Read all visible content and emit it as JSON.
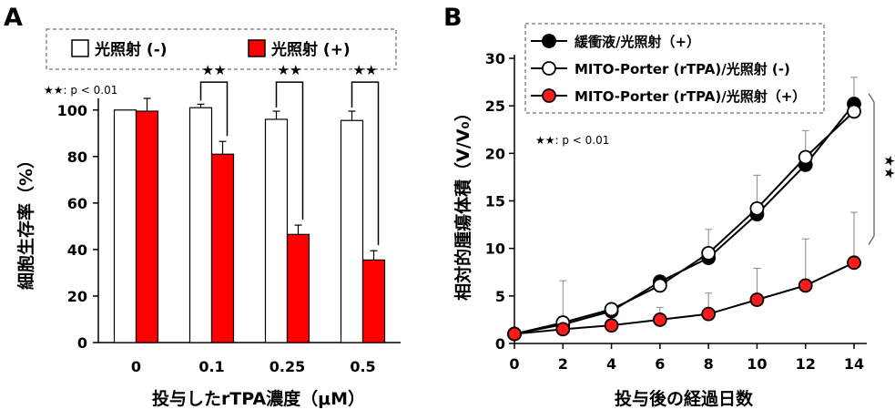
{
  "panels": {
    "a": {
      "label": "A"
    },
    "b": {
      "label": "B"
    }
  },
  "chart_data": [
    {
      "type": "bar",
      "panel": "A",
      "categories": [
        "0",
        "0.1",
        "0.25",
        "0.5"
      ],
      "series": [
        {
          "name": "光照射 (-)",
          "color": "#ffffff",
          "values": [
            100,
            101,
            96,
            95.5
          ],
          "errors": [
            0,
            1.5,
            3.5,
            4
          ]
        },
        {
          "name": "光照射 (+)",
          "color": "#ff0000",
          "values": [
            99.5,
            81,
            46.5,
            35.5
          ],
          "errors": [
            5.5,
            5.5,
            4,
            4
          ]
        }
      ],
      "xlabel": "投与したrTPA濃度（μM）",
      "ylabel": "細胞生存率（%）",
      "ylim": [
        0,
        100
      ],
      "yticks": [
        0,
        20,
        40,
        60,
        80,
        100
      ],
      "significance": {
        "marker": "★★",
        "pairs": [
          1,
          2,
          3
        ],
        "note_marker": "★★",
        "note_text": ": p < 0.01"
      },
      "legend": "top",
      "legend_border": "dashed"
    },
    {
      "type": "line",
      "panel": "B",
      "x": [
        0,
        2,
        4,
        6,
        8,
        10,
        12,
        14
      ],
      "series": [
        {
          "name": "緩衝液/光照射（+）",
          "marker": "filled-black",
          "values": [
            1,
            2.0,
            3.4,
            6.5,
            9.0,
            13.6,
            18.8,
            25.2
          ],
          "errors": [
            0,
            0,
            0,
            0,
            0,
            0,
            0,
            2.8
          ]
        },
        {
          "name": "MITO-Porter (rTPA)/光照射 (-)",
          "marker": "open",
          "values": [
            1,
            2.2,
            3.6,
            6.1,
            9.5,
            14.2,
            19.6,
            24.4
          ],
          "errors": [
            0,
            4.4,
            0,
            0,
            2.5,
            3.5,
            2.8,
            0
          ]
        },
        {
          "name": "MITO-Porter (rTPA)/光照射（+）",
          "marker": "filled-red",
          "values": [
            1,
            1.5,
            1.9,
            2.5,
            3.1,
            4.6,
            6.1,
            8.5
          ],
          "errors": [
            0,
            0,
            0,
            1.3,
            2.2,
            3.3,
            4.9,
            5.3
          ]
        }
      ],
      "xlabel": "投与後の経過日数",
      "ylabel": "相対的腫瘍体積（V/V₀）",
      "xlim": [
        0,
        14
      ],
      "ylim": [
        0,
        30
      ],
      "xticks": [
        0,
        2,
        4,
        6,
        8,
        10,
        12,
        14
      ],
      "yticks": [
        0,
        5,
        10,
        15,
        20,
        25,
        30
      ],
      "significance": {
        "marker": "★★",
        "note_marker": "★★",
        "note_text": ": p < 0.01"
      },
      "legend": "top-left",
      "legend_border": "dashed"
    }
  ]
}
